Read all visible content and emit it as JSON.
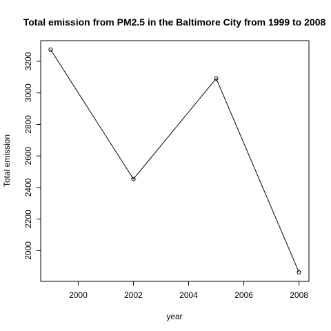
{
  "chart_data": {
    "type": "line",
    "title": "Total emission from PM2.5 in the Baltimore City from 1999 to 2008",
    "xlabel": "year",
    "ylabel": "Total emission",
    "x": [
      1999,
      2002,
      2005,
      2008
    ],
    "series": [
      {
        "values": [
          3274,
          2454,
          3091,
          1862
        ]
      }
    ],
    "xticks": [
      2000,
      2002,
      2004,
      2006,
      2008
    ],
    "yticks": [
      2000,
      2200,
      2400,
      2600,
      2800,
      3000,
      3200
    ],
    "xlim": [
      1998.64,
      2008.36
    ],
    "ylim": [
      1805,
      3331
    ],
    "grid": false,
    "line_color": "#000000",
    "marker": "open-circle"
  }
}
